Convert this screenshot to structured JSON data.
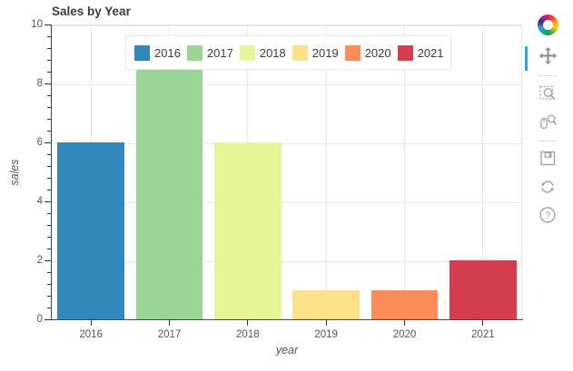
{
  "chart_data": {
    "type": "bar",
    "title": "Sales by Year",
    "xlabel": "year",
    "ylabel": "sales",
    "categories": [
      "2016",
      "2017",
      "2018",
      "2019",
      "2020",
      "2021"
    ],
    "values": [
      6,
      8.5,
      6,
      1,
      1,
      2
    ],
    "colors": [
      "#3288bd",
      "#99d594",
      "#e6f598",
      "#fee08b",
      "#fc8d59",
      "#d53e4f"
    ],
    "ylim": [
      0,
      10
    ],
    "y_ticks": [
      0,
      2,
      4,
      6,
      8,
      10
    ],
    "y_minor_tick_step": 0.4,
    "grid": true,
    "legend": {
      "orientation": "horizontal",
      "position": "top",
      "entries": [
        "2016",
        "2017",
        "2018",
        "2019",
        "2020",
        "2021"
      ]
    }
  },
  "toolbar": {
    "logo_icon": "bokeh-logo-icon",
    "active_indicator_color": "#26aae1",
    "tool_groups": [
      [
        {
          "label": "Pan",
          "icon": "pan-move-icon",
          "active": true
        }
      ],
      [
        {
          "label": "Box Zoom",
          "icon": "box-zoom-magnifier-icon",
          "active": false
        },
        {
          "label": "Wheel Zoom",
          "icon": "wheel-zoom-magnifier-icon",
          "active": false
        }
      ],
      [
        {
          "label": "Save",
          "icon": "floppy-disk-icon",
          "active": false
        },
        {
          "label": "Reset",
          "icon": "refresh-arrows-icon",
          "active": false
        },
        {
          "label": "Help",
          "icon": "question-mark-icon",
          "active": false
        }
      ]
    ]
  }
}
